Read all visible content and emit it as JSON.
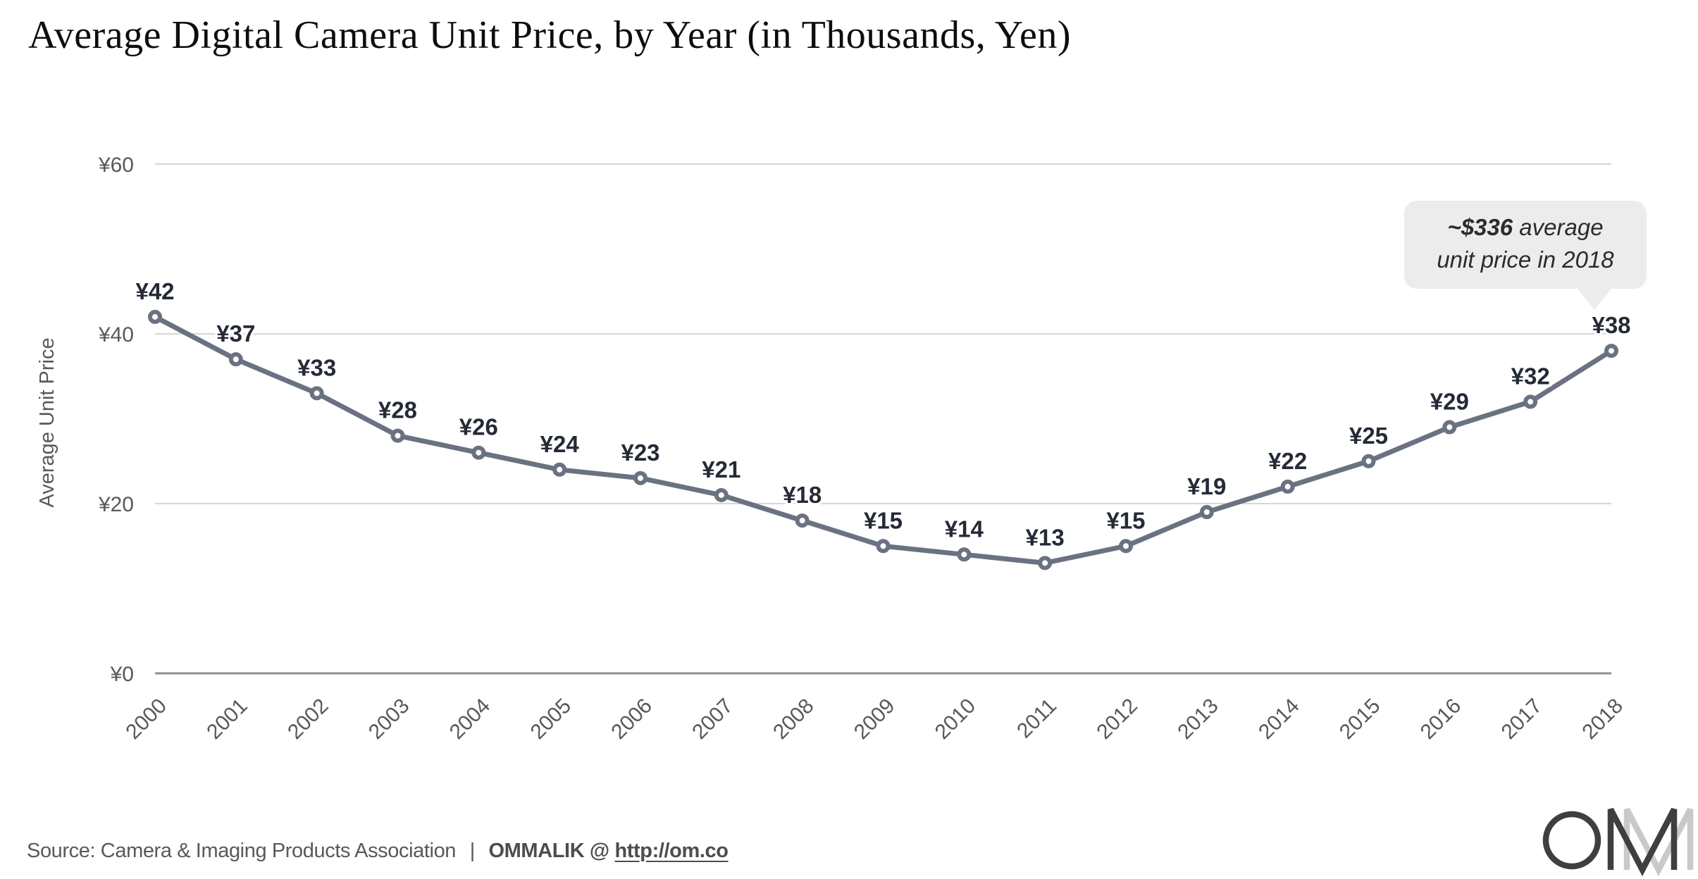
{
  "title": "Average Digital Camera Unit Price, by Year (in Thousands, Yen)",
  "chart_data": {
    "type": "line",
    "title": "Average Digital Camera Unit Price, by Year (in Thousands, Yen)",
    "xlabel": "",
    "ylabel": "Average Unit Price",
    "x": [
      2000,
      2001,
      2002,
      2003,
      2004,
      2005,
      2006,
      2007,
      2008,
      2009,
      2010,
      2011,
      2012,
      2013,
      2014,
      2015,
      2016,
      2017,
      2018
    ],
    "values": [
      42,
      37,
      33,
      28,
      26,
      24,
      23,
      21,
      18,
      15,
      14,
      13,
      15,
      19,
      22,
      25,
      29,
      32,
      38
    ],
    "point_labels": [
      "¥42",
      "¥37",
      "¥33",
      "¥28",
      "¥26",
      "¥24",
      "¥23",
      "¥21",
      "¥18",
      "¥15",
      "¥14",
      "¥13",
      "¥15",
      "¥19",
      "¥22",
      "¥25",
      "¥29",
      "¥32",
      "¥38"
    ],
    "ylim": [
      0,
      60
    ],
    "yticks": [
      {
        "value": 0,
        "label": "¥0"
      },
      {
        "value": 20,
        "label": "¥20"
      },
      {
        "value": 40,
        "label": "¥40"
      },
      {
        "value": 60,
        "label": "¥60"
      }
    ],
    "grid": true,
    "legend": "none",
    "line_color": "#6a7282",
    "marker_fill": "#ffffff",
    "point_label_color": "#242a36",
    "axis_text_color": "#595959",
    "gridline_color": "#d6d6d6",
    "baseline_color": "#8f8f8f"
  },
  "annotation": {
    "highlight": "~$336",
    "line1_rest": " average",
    "line2": "unit price in 2018"
  },
  "footer": {
    "source": "Source: Camera & Imaging Products Association",
    "separator": "|",
    "byline": "OMMALIK @",
    "link": "http://om.co"
  },
  "logo": {
    "name": "OM logo"
  }
}
